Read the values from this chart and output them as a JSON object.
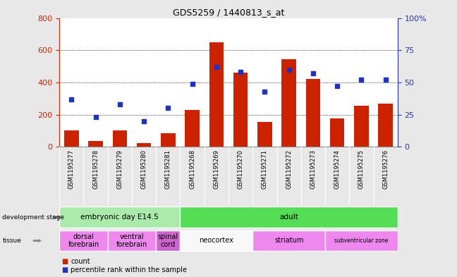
{
  "title": "GDS5259 / 1440813_s_at",
  "samples": [
    "GSM1195277",
    "GSM1195278",
    "GSM1195279",
    "GSM1195280",
    "GSM1195281",
    "GSM1195268",
    "GSM1195269",
    "GSM1195270",
    "GSM1195271",
    "GSM1195272",
    "GSM1195273",
    "GSM1195274",
    "GSM1195275",
    "GSM1195276"
  ],
  "counts": [
    100,
    35,
    100,
    25,
    85,
    230,
    650,
    460,
    155,
    545,
    420,
    175,
    255,
    270
  ],
  "percentiles": [
    37,
    23,
    33,
    20,
    30,
    49,
    62,
    58,
    43,
    60,
    57,
    47,
    52,
    52
  ],
  "ylim_left": [
    0,
    800
  ],
  "ylim_right": [
    0,
    100
  ],
  "yticks_left": [
    0,
    200,
    400,
    600,
    800
  ],
  "yticks_right": [
    0,
    25,
    50,
    75,
    100
  ],
  "bar_color": "#cc2200",
  "scatter_color": "#2233bb",
  "background_color": "#e8e8e8",
  "plot_bg": "#ffffff",
  "dev_stage_groups": [
    {
      "label": "embryonic day E14.5",
      "start": 0,
      "end": 4,
      "color": "#aaeaaa"
    },
    {
      "label": "adult",
      "start": 5,
      "end": 13,
      "color": "#55dd55"
    }
  ],
  "tissue_groups": [
    {
      "label": "dorsal\nforebrain",
      "start": 0,
      "end": 1,
      "color": "#ee88ee"
    },
    {
      "label": "ventral\nforebrain",
      "start": 2,
      "end": 3,
      "color": "#ee88ee"
    },
    {
      "label": "spinal\ncord",
      "start": 4,
      "end": 4,
      "color": "#cc66cc"
    },
    {
      "label": "neocortex",
      "start": 5,
      "end": 7,
      "color": "#f8f8f8"
    },
    {
      "label": "striatum",
      "start": 8,
      "end": 10,
      "color": "#ee88ee"
    },
    {
      "label": "subventricular zone",
      "start": 11,
      "end": 13,
      "color": "#ee88ee"
    }
  ],
  "xtick_bg": "#cccccc",
  "legend_count_color": "#cc2200",
  "legend_pct_color": "#2233bb"
}
